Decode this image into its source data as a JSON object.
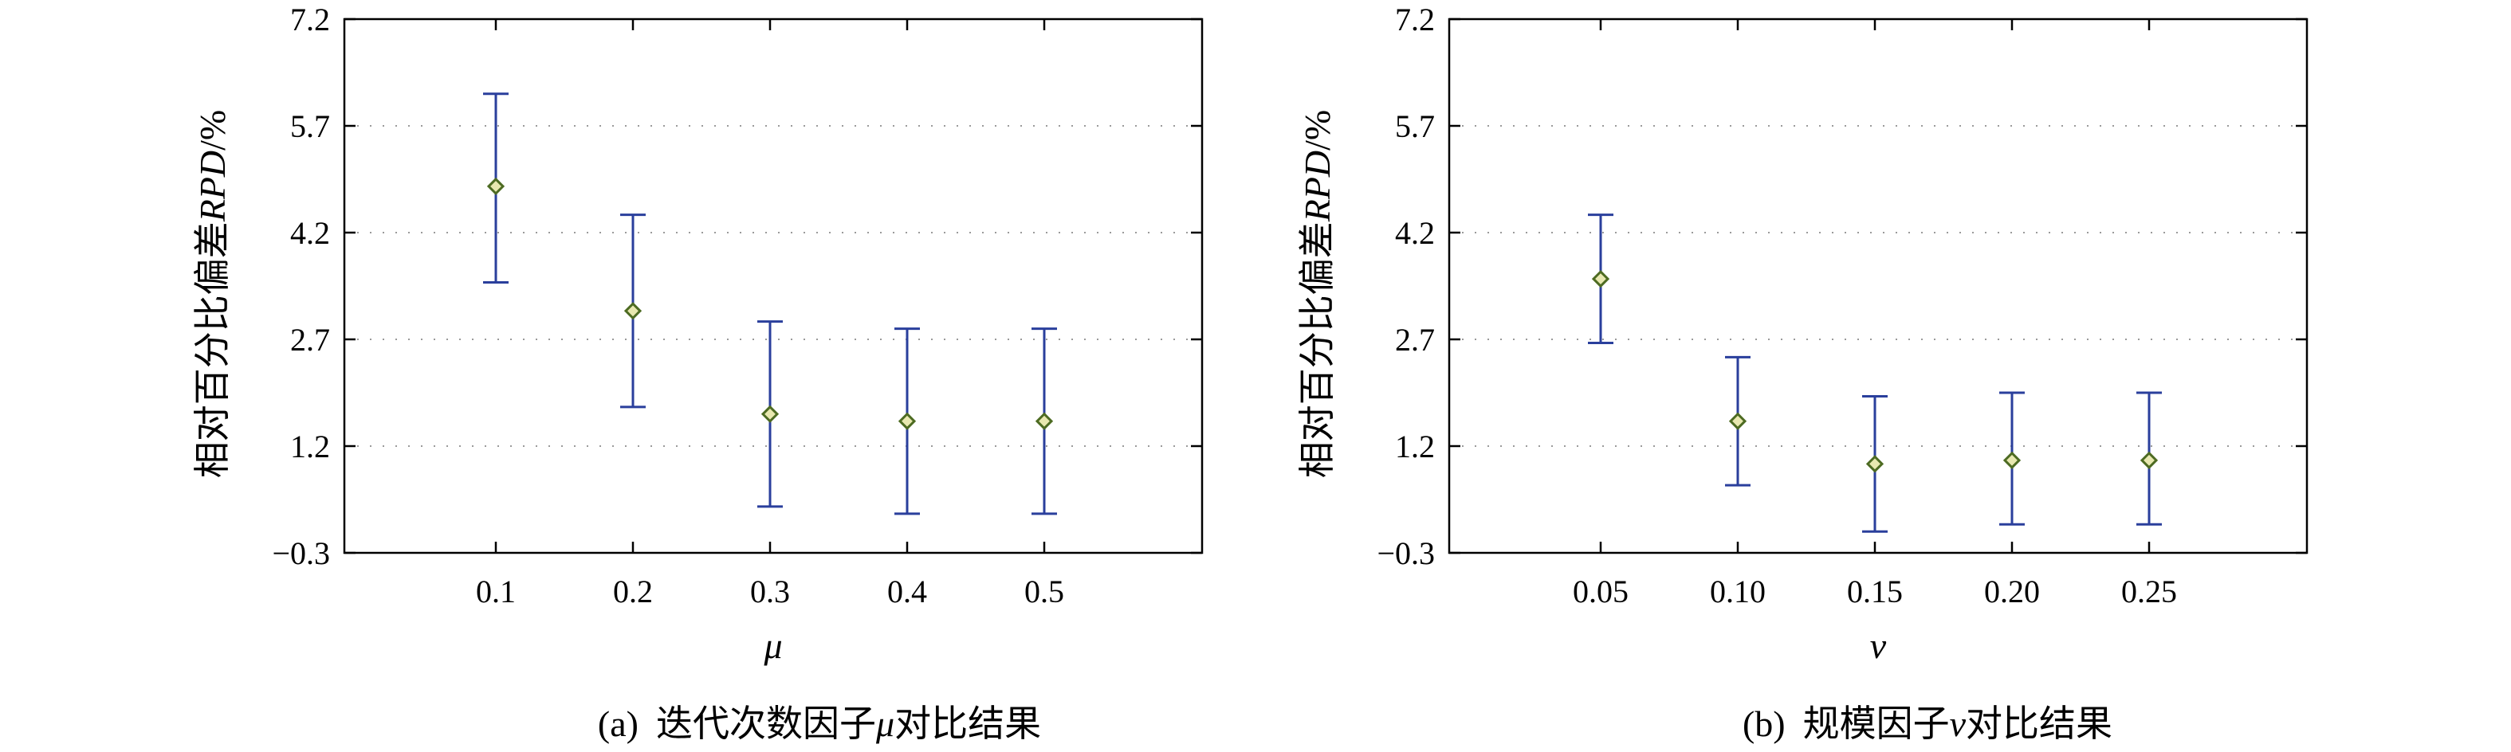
{
  "chart_data": [
    {
      "type": "scatter",
      "panel": "a",
      "caption": {
        "prefix": "(a)",
        "text_before": "迭代次数因子",
        "symbol": "μ",
        "text_after": "对比结果"
      },
      "xlabel": "μ",
      "ylabel": {
        "text": "相对百分比偏差",
        "italic": "RPD",
        "unit": "/%"
      },
      "ylim": [
        -0.3,
        7.2
      ],
      "yticks": [
        "−0.3",
        "1.2",
        "2.7",
        "4.2",
        "5.7",
        "7.2"
      ],
      "ytick_values": [
        -0.3,
        1.2,
        2.7,
        4.2,
        5.7,
        7.2
      ],
      "categories": [
        "0.1",
        "0.2",
        "0.3",
        "0.4",
        "0.5"
      ],
      "grid": "horizontal dotted",
      "marker": "diamond",
      "error_bars": true,
      "points": [
        {
          "x": "0.1",
          "mean": 4.85,
          "lower": 3.5,
          "upper": 6.15
        },
        {
          "x": "0.2",
          "mean": 3.1,
          "lower": 1.75,
          "upper": 4.45
        },
        {
          "x": "0.3",
          "mean": 1.65,
          "lower": 0.35,
          "upper": 2.95
        },
        {
          "x": "0.4",
          "mean": 1.55,
          "lower": 0.25,
          "upper": 2.85
        },
        {
          "x": "0.5",
          "mean": 1.55,
          "lower": 0.25,
          "upper": 2.85
        }
      ]
    },
    {
      "type": "scatter",
      "panel": "b",
      "caption": {
        "prefix": "(b)",
        "text_before": "规模因子",
        "symbol": "v",
        "text_after": "对比结果"
      },
      "xlabel": "v",
      "ylabel": {
        "text": "相对百分比偏差",
        "italic": "RPD",
        "unit": "/%"
      },
      "ylim": [
        -0.3,
        7.2
      ],
      "yticks": [
        "−0.3",
        "1.2",
        "2.7",
        "4.2",
        "5.7",
        "7.2"
      ],
      "ytick_values": [
        -0.3,
        1.2,
        2.7,
        4.2,
        5.7,
        7.2
      ],
      "categories": [
        "0.05",
        "0.10",
        "0.15",
        "0.20",
        "0.25"
      ],
      "grid": "horizontal dotted",
      "marker": "diamond",
      "error_bars": true,
      "points": [
        {
          "x": "0.05",
          "mean": 3.55,
          "lower": 2.65,
          "upper": 4.45
        },
        {
          "x": "0.10",
          "mean": 1.55,
          "lower": 0.65,
          "upper": 2.45
        },
        {
          "x": "0.15",
          "mean": 0.95,
          "lower": 0.0,
          "upper": 1.9
        },
        {
          "x": "0.20",
          "mean": 1.0,
          "lower": 0.1,
          "upper": 1.95
        },
        {
          "x": "0.25",
          "mean": 1.0,
          "lower": 0.1,
          "upper": 1.95
        }
      ]
    }
  ],
  "colors": {
    "errorbar": "#2a3f9c",
    "marker_edge": "#4d6b22",
    "marker_fill": "#e8e8b0",
    "axis": "#000000",
    "grid": "#9a9a9a"
  }
}
